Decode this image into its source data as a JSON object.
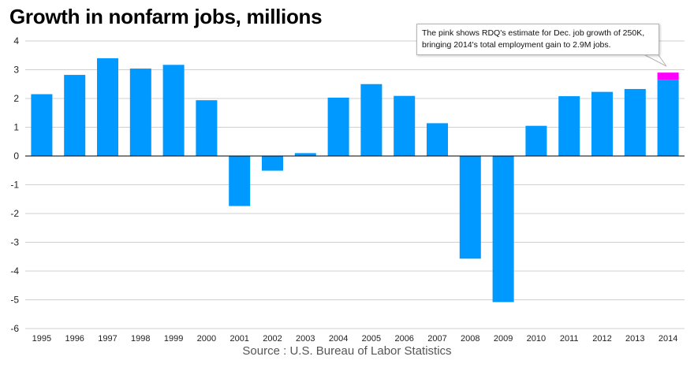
{
  "title": "Growth in nonfarm jobs, millions",
  "source": "Source : U.S. Bureau of Labor Statistics",
  "annotation": "The pink shows RDQ's estimate for Dec. job growth of 250K, bringing 2014's total employment gain to 2.9M jobs.",
  "colors": {
    "bar": "#0099ff",
    "estimate": "#ff00ff",
    "grid": "#d0d0d0",
    "zero_line": "#000000"
  },
  "chart_data": {
    "type": "bar",
    "title": "Growth in nonfarm jobs, millions",
    "xlabel": "",
    "ylabel": "",
    "ylim": [
      -6,
      4
    ],
    "yticks": [
      4,
      3,
      2,
      1,
      0,
      -1,
      -2,
      -3,
      -4,
      -5,
      -6
    ],
    "grid": true,
    "categories": [
      "1995",
      "1996",
      "1997",
      "1998",
      "1999",
      "2000",
      "2001",
      "2002",
      "2003",
      "2004",
      "2005",
      "2006",
      "2007",
      "2008",
      "2009",
      "2010",
      "2011",
      "2012",
      "2013",
      "2014"
    ],
    "values": [
      2.15,
      2.82,
      3.4,
      3.04,
      3.17,
      1.94,
      -1.74,
      -0.51,
      0.1,
      2.03,
      2.5,
      2.09,
      1.14,
      -3.57,
      -5.08,
      1.05,
      2.08,
      2.23,
      2.33,
      2.65
    ],
    "estimate": {
      "category": "2014",
      "base": 2.65,
      "value": 0.25
    }
  }
}
